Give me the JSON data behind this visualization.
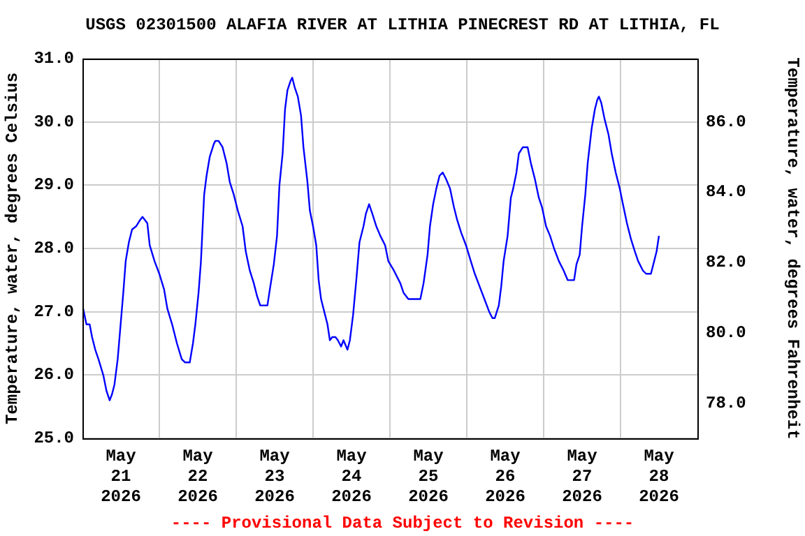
{
  "chart_data": {
    "type": "line",
    "title": "USGS 02301500 ALAFIA RIVER AT LITHIA PINECREST RD AT LITHIA, FL",
    "ylabel": "Temperature, water, degrees Celsius",
    "y2label": "Temperature, water, degrees Fahrenheit",
    "annotations": [
      "---- Provisional Data Subject to Revision ----"
    ],
    "x": [
      "2026-05-21T00:00",
      "2026-05-21T01:15",
      "2026-05-21T02:15",
      "2026-05-21T03:00",
      "2026-05-21T04:00",
      "2026-05-21T05:00",
      "2026-05-21T06:30",
      "2026-05-21T07:30",
      "2026-05-21T08:30",
      "2026-05-21T09:15",
      "2026-05-21T10:00",
      "2026-05-21T11:00",
      "2026-05-21T11:45",
      "2026-05-21T12:45",
      "2026-05-21T13:30",
      "2026-05-21T14:30",
      "2026-05-21T15:30",
      "2026-05-21T16:45",
      "2026-05-21T18:00",
      "2026-05-21T18:45",
      "2026-05-21T20:15",
      "2026-05-21T21:00",
      "2026-05-21T22:30",
      "2026-05-22T00:00",
      "2026-05-22T01:30",
      "2026-05-22T02:30",
      "2026-05-22T04:00",
      "2026-05-22T05:30",
      "2026-05-22T07:00",
      "2026-05-22T08:00",
      "2026-05-22T09:30",
      "2026-05-22T10:30",
      "2026-05-22T11:15",
      "2026-05-22T12:15",
      "2026-05-22T13:00",
      "2026-05-22T14:00",
      "2026-05-22T14:45",
      "2026-05-22T15:45",
      "2026-05-22T17:00",
      "2026-05-22T17:30",
      "2026-05-22T18:30",
      "2026-05-22T19:45",
      "2026-05-22T21:00",
      "2026-05-22T22:00",
      "2026-05-22T23:15",
      "2026-05-23T00:30",
      "2026-05-23T02:00",
      "2026-05-23T03:00",
      "2026-05-23T04:15",
      "2026-05-23T05:30",
      "2026-05-23T06:30",
      "2026-05-23T07:30",
      "2026-05-23T09:45",
      "2026-05-23T10:30",
      "2026-05-23T11:45",
      "2026-05-23T12:45",
      "2026-05-23T13:30",
      "2026-05-23T14:30",
      "2026-05-23T15:15",
      "2026-05-23T16:00",
      "2026-05-23T17:00",
      "2026-05-23T17:30",
      "2026-05-23T18:15",
      "2026-05-23T19:15",
      "2026-05-23T20:15",
      "2026-05-23T21:00",
      "2026-05-23T22:15",
      "2026-05-23T23:00",
      "2026-05-24T00:00",
      "2026-05-24T01:00",
      "2026-05-24T01:45",
      "2026-05-24T02:30",
      "2026-05-24T03:30",
      "2026-05-24T04:30",
      "2026-05-24T05:15",
      "2026-05-24T06:00",
      "2026-05-24T07:00",
      "2026-05-24T07:45",
      "2026-05-24T08:45",
      "2026-05-24T09:30",
      "2026-05-24T10:45",
      "2026-05-24T11:30",
      "2026-05-24T12:30",
      "2026-05-24T13:30",
      "2026-05-24T14:30",
      "2026-05-24T15:45",
      "2026-05-24T16:30",
      "2026-05-24T17:30",
      "2026-05-24T18:30",
      "2026-05-24T19:45",
      "2026-05-24T21:00",
      "2026-05-24T22:30",
      "2026-05-24T23:30",
      "2026-05-25T01:15",
      "2026-05-25T03:15",
      "2026-05-25T04:15",
      "2026-05-25T05:45",
      "2026-05-25T09:30",
      "2026-05-25T10:30",
      "2026-05-25T11:45",
      "2026-05-25T12:30",
      "2026-05-25T13:30",
      "2026-05-25T14:30",
      "2026-05-25T15:30",
      "2026-05-25T16:30",
      "2026-05-25T17:30",
      "2026-05-25T18:45",
      "2026-05-25T20:00",
      "2026-05-25T21:00",
      "2026-05-25T22:15",
      "2026-05-25T23:45",
      "2026-05-26T01:15",
      "2026-05-26T02:30",
      "2026-05-26T04:00",
      "2026-05-26T05:30",
      "2026-05-26T07:00",
      "2026-05-26T08:00",
      "2026-05-26T08:45",
      "2026-05-26T10:00",
      "2026-05-26T10:45",
      "2026-05-26T11:30",
      "2026-05-26T12:45",
      "2026-05-26T13:45",
      "2026-05-26T14:30",
      "2026-05-26T15:30",
      "2026-05-26T16:15",
      "2026-05-26T17:30",
      "2026-05-26T19:00",
      "2026-05-26T20:00",
      "2026-05-26T21:15",
      "2026-05-26T22:30",
      "2026-05-26T23:30",
      "2026-05-27T00:45",
      "2026-05-27T02:00",
      "2026-05-27T03:15",
      "2026-05-27T04:45",
      "2026-05-27T06:15",
      "2026-05-27T07:30",
      "2026-05-27T09:30",
      "2026-05-27T10:15",
      "2026-05-27T11:15",
      "2026-05-27T12:00",
      "2026-05-27T13:00",
      "2026-05-27T13:45",
      "2026-05-27T15:00",
      "2026-05-27T16:00",
      "2026-05-27T16:45",
      "2026-05-27T17:15",
      "2026-05-27T18:00",
      "2026-05-27T19:00",
      "2026-05-27T20:15",
      "2026-05-27T21:15",
      "2026-05-27T22:30",
      "2026-05-27T23:45",
      "2026-05-28T00:45",
      "2026-05-28T02:00",
      "2026-05-28T03:15",
      "2026-05-28T04:30",
      "2026-05-28T05:30",
      "2026-05-28T07:00",
      "2026-05-28T08:00",
      "2026-05-28T09:30",
      "2026-05-28T10:30",
      "2026-05-28T11:15",
      "2026-05-28T12:00"
    ],
    "series": [
      {
        "color": "#0000ff",
        "values": [
          27.1,
          26.8,
          26.8,
          26.6,
          26.4,
          26.25,
          26.0,
          25.75,
          25.6,
          25.7,
          25.85,
          26.25,
          26.7,
          27.3,
          27.8,
          28.1,
          28.3,
          28.35,
          28.45,
          28.5,
          28.4,
          28.05,
          27.8,
          27.6,
          27.35,
          27.05,
          26.8,
          26.5,
          26.25,
          26.2,
          26.2,
          26.5,
          26.8,
          27.3,
          27.8,
          28.85,
          29.15,
          29.45,
          29.65,
          29.7,
          29.7,
          29.6,
          29.35,
          29.05,
          28.85,
          28.6,
          28.35,
          27.95,
          27.65,
          27.45,
          27.25,
          27.1,
          27.1,
          27.35,
          27.75,
          28.2,
          29.0,
          29.5,
          30.2,
          30.5,
          30.65,
          30.7,
          30.55,
          30.4,
          30.1,
          29.6,
          29.05,
          28.6,
          28.35,
          28.05,
          27.5,
          27.2,
          27.0,
          26.8,
          26.55,
          26.6,
          26.6,
          26.55,
          26.45,
          26.55,
          26.4,
          26.55,
          26.95,
          27.5,
          28.1,
          28.35,
          28.55,
          28.7,
          28.55,
          28.35,
          28.2,
          28.05,
          27.8,
          27.65,
          27.45,
          27.3,
          27.2,
          27.2,
          27.45,
          27.9,
          28.35,
          28.7,
          28.95,
          29.15,
          29.2,
          29.1,
          28.95,
          28.65,
          28.45,
          28.25,
          28.05,
          27.8,
          27.6,
          27.4,
          27.2,
          27.0,
          26.9,
          26.9,
          27.1,
          27.4,
          27.8,
          28.2,
          28.8,
          28.95,
          29.2,
          29.5,
          29.6,
          29.6,
          29.35,
          29.1,
          28.8,
          28.65,
          28.35,
          28.2,
          28.0,
          27.8,
          27.65,
          27.5,
          27.5,
          27.75,
          27.9,
          28.35,
          28.85,
          29.35,
          29.9,
          30.2,
          30.35,
          30.4,
          30.3,
          30.05,
          29.8,
          29.5,
          29.2,
          28.95,
          28.7,
          28.4,
          28.15,
          27.95,
          27.8,
          27.65,
          27.6,
          27.6,
          27.8,
          27.95,
          28.2
        ]
      }
    ],
    "xlim": [
      "2026-05-21T00:00",
      "2026-05-29T00:00"
    ],
    "xticks": [
      {
        "value": "2026-05-21T12:00",
        "label": "May\n21\n2026"
      },
      {
        "value": "2026-05-22T00:00",
        "label": null
      },
      {
        "value": "2026-05-22T12:00",
        "label": "May\n22\n2026"
      },
      {
        "value": "2026-05-23T00:00",
        "label": null
      },
      {
        "value": "2026-05-23T12:00",
        "label": "May\n23\n2026"
      },
      {
        "value": "2026-05-24T00:00",
        "label": null
      },
      {
        "value": "2026-05-24T12:00",
        "label": "May\n24\n2026"
      },
      {
        "value": "2026-05-25T00:00",
        "label": null
      },
      {
        "value": "2026-05-25T12:00",
        "label": "May\n25\n2026"
      },
      {
        "value": "2026-05-26T00:00",
        "label": null
      },
      {
        "value": "2026-05-26T12:00",
        "label": "May\n26\n2026"
      },
      {
        "value": "2026-05-27T00:00",
        "label": null
      },
      {
        "value": "2026-05-27T12:00",
        "label": "May\n27\n2026"
      },
      {
        "value": "2026-05-28T00:00",
        "label": null
      },
      {
        "value": "2026-05-28T12:00",
        "label": "May\n28\n2026"
      }
    ],
    "ylim": [
      25,
      31
    ],
    "yticks": [
      {
        "value": 25,
        "label": "25.0"
      },
      {
        "value": 26,
        "label": "26.0"
      },
      {
        "value": 27,
        "label": "27.0"
      },
      {
        "value": 28,
        "label": "28.0"
      },
      {
        "value": 29,
        "label": "29.0"
      },
      {
        "value": 30,
        "label": "30.0"
      },
      {
        "value": 31,
        "label": "31.0"
      }
    ],
    "y2lim": [
      77,
      87.8
    ],
    "y2ticks": [
      {
        "value": 78,
        "label": "78.0"
      },
      {
        "value": 80,
        "label": "80.0"
      },
      {
        "value": 82,
        "label": "82.0"
      },
      {
        "value": 84,
        "label": "84.0"
      },
      {
        "value": 86,
        "label": "86.0"
      }
    ],
    "grid": true,
    "legend": false,
    "marker": "none",
    "line_style": "solid"
  }
}
